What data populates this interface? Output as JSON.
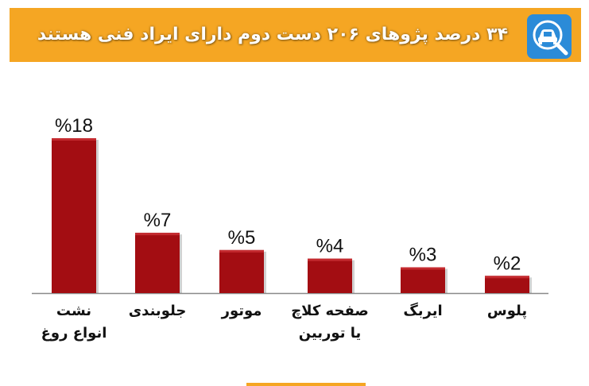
{
  "header": {
    "title": "۳۴ درصد پژوهای ۲۰۶ دست دوم دارای ایراد فنی هستند",
    "icon": "car-inspection-icon",
    "background_color": "#f5a623",
    "icon_background_color": "#2b8bd8"
  },
  "chart_data": {
    "type": "bar",
    "title": "۳۴ درصد پژوهای ۲۰۶ دست دوم دارای ایراد فنی هستند",
    "categories": [
      [
        "نشت",
        "انواع روغ"
      ],
      [
        "جلوبندی"
      ],
      [
        "موتور"
      ],
      [
        "صفحه کلاچ",
        "یا توربین"
      ],
      [
        "ایربگ"
      ],
      [
        "پلوس"
      ]
    ],
    "values": [
      18,
      7,
      5,
      4,
      3,
      2
    ],
    "value_labels": [
      "%18",
      "%7",
      "%5",
      "%4",
      "%3",
      "%2"
    ],
    "unit": "%",
    "ylim": [
      0,
      20
    ],
    "grid": false,
    "legend": "none",
    "bar_color": "#a30d12"
  }
}
